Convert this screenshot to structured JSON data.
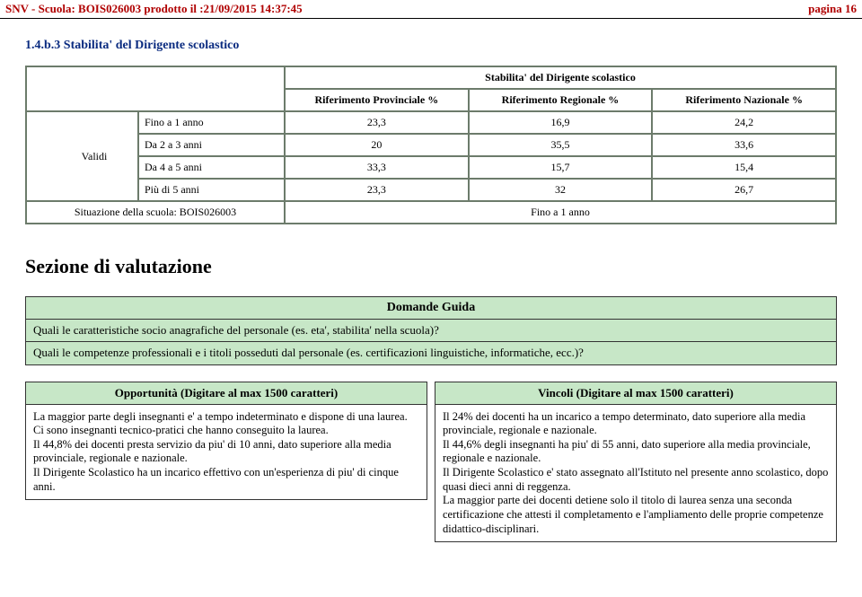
{
  "header": {
    "left": "SNV - Scuola: BOIS026003 prodotto il :21/09/2015 14:37:45",
    "right": "pagina 16"
  },
  "section_number": "1.4.b.3 Stabilita' del Dirigente scolastico",
  "table": {
    "title": "Stabilita' del Dirigente scolastico",
    "columns": [
      "Riferimento Provinciale %",
      "Riferimento Regionale %",
      "Riferimento Nazionale %"
    ],
    "rows_label": "Validi",
    "rows": [
      {
        "name": "Fino a 1 anno",
        "prov": "23,3",
        "reg": "16,9",
        "naz": "24,2"
      },
      {
        "name": "Da 2 a 3 anni",
        "prov": "20",
        "reg": "35,5",
        "naz": "33,6"
      },
      {
        "name": "Da 4 a 5 anni",
        "prov": "33,3",
        "reg": "15,7",
        "naz": "15,4"
      },
      {
        "name": "Più di 5 anni",
        "prov": "23,3",
        "reg": "32",
        "naz": "26,7"
      }
    ],
    "footer_left": "Situazione della scuola: BOIS026003",
    "footer_value": "Fino a 1 anno"
  },
  "sezione_title": "Sezione di valutazione",
  "domande": {
    "title": "Domande Guida",
    "q1": "Quali le caratteristiche socio anagrafiche del personale (es. eta', stabilita' nella scuola)?",
    "q2": "Quali le competenze professionali e i titoli posseduti dal personale (es. certificazioni linguistiche, informatiche, ecc.)?"
  },
  "opportunita": {
    "title": "Opportunità (Digitare al max 1500 caratteri)",
    "body": "La maggior parte degli insegnanti e' a tempo indeterminato e dispone di una laurea.\nCi sono insegnanti tecnico-pratici che hanno conseguito la laurea.\nIl 44,8% dei docenti presta servizio da piu' di 10 anni, dato superiore alla media provinciale, regionale e nazionale.\nIl Dirigente Scolastico ha un incarico effettivo con un'esperienza di piu' di cinque anni."
  },
  "vincoli": {
    "title": "Vincoli (Digitare al max 1500 caratteri)",
    "body": "Il 24% dei docenti  ha un incarico a tempo determinato, dato superiore alla media provinciale, regionale e nazionale.\nIl 44,6% degli insegnanti ha piu' di 55 anni, dato superiore alla media provinciale, regionale e nazionale.\nIl Dirigente Scolastico e' stato assegnato all'Istituto nel presente anno scolastico, dopo quasi dieci anni di reggenza.\nLa maggior parte dei docenti detiene solo il  titolo di laurea senza una seconda certificazione che attesti il completamento e l'ampliamento delle proprie competenze didattico-disciplinari."
  }
}
